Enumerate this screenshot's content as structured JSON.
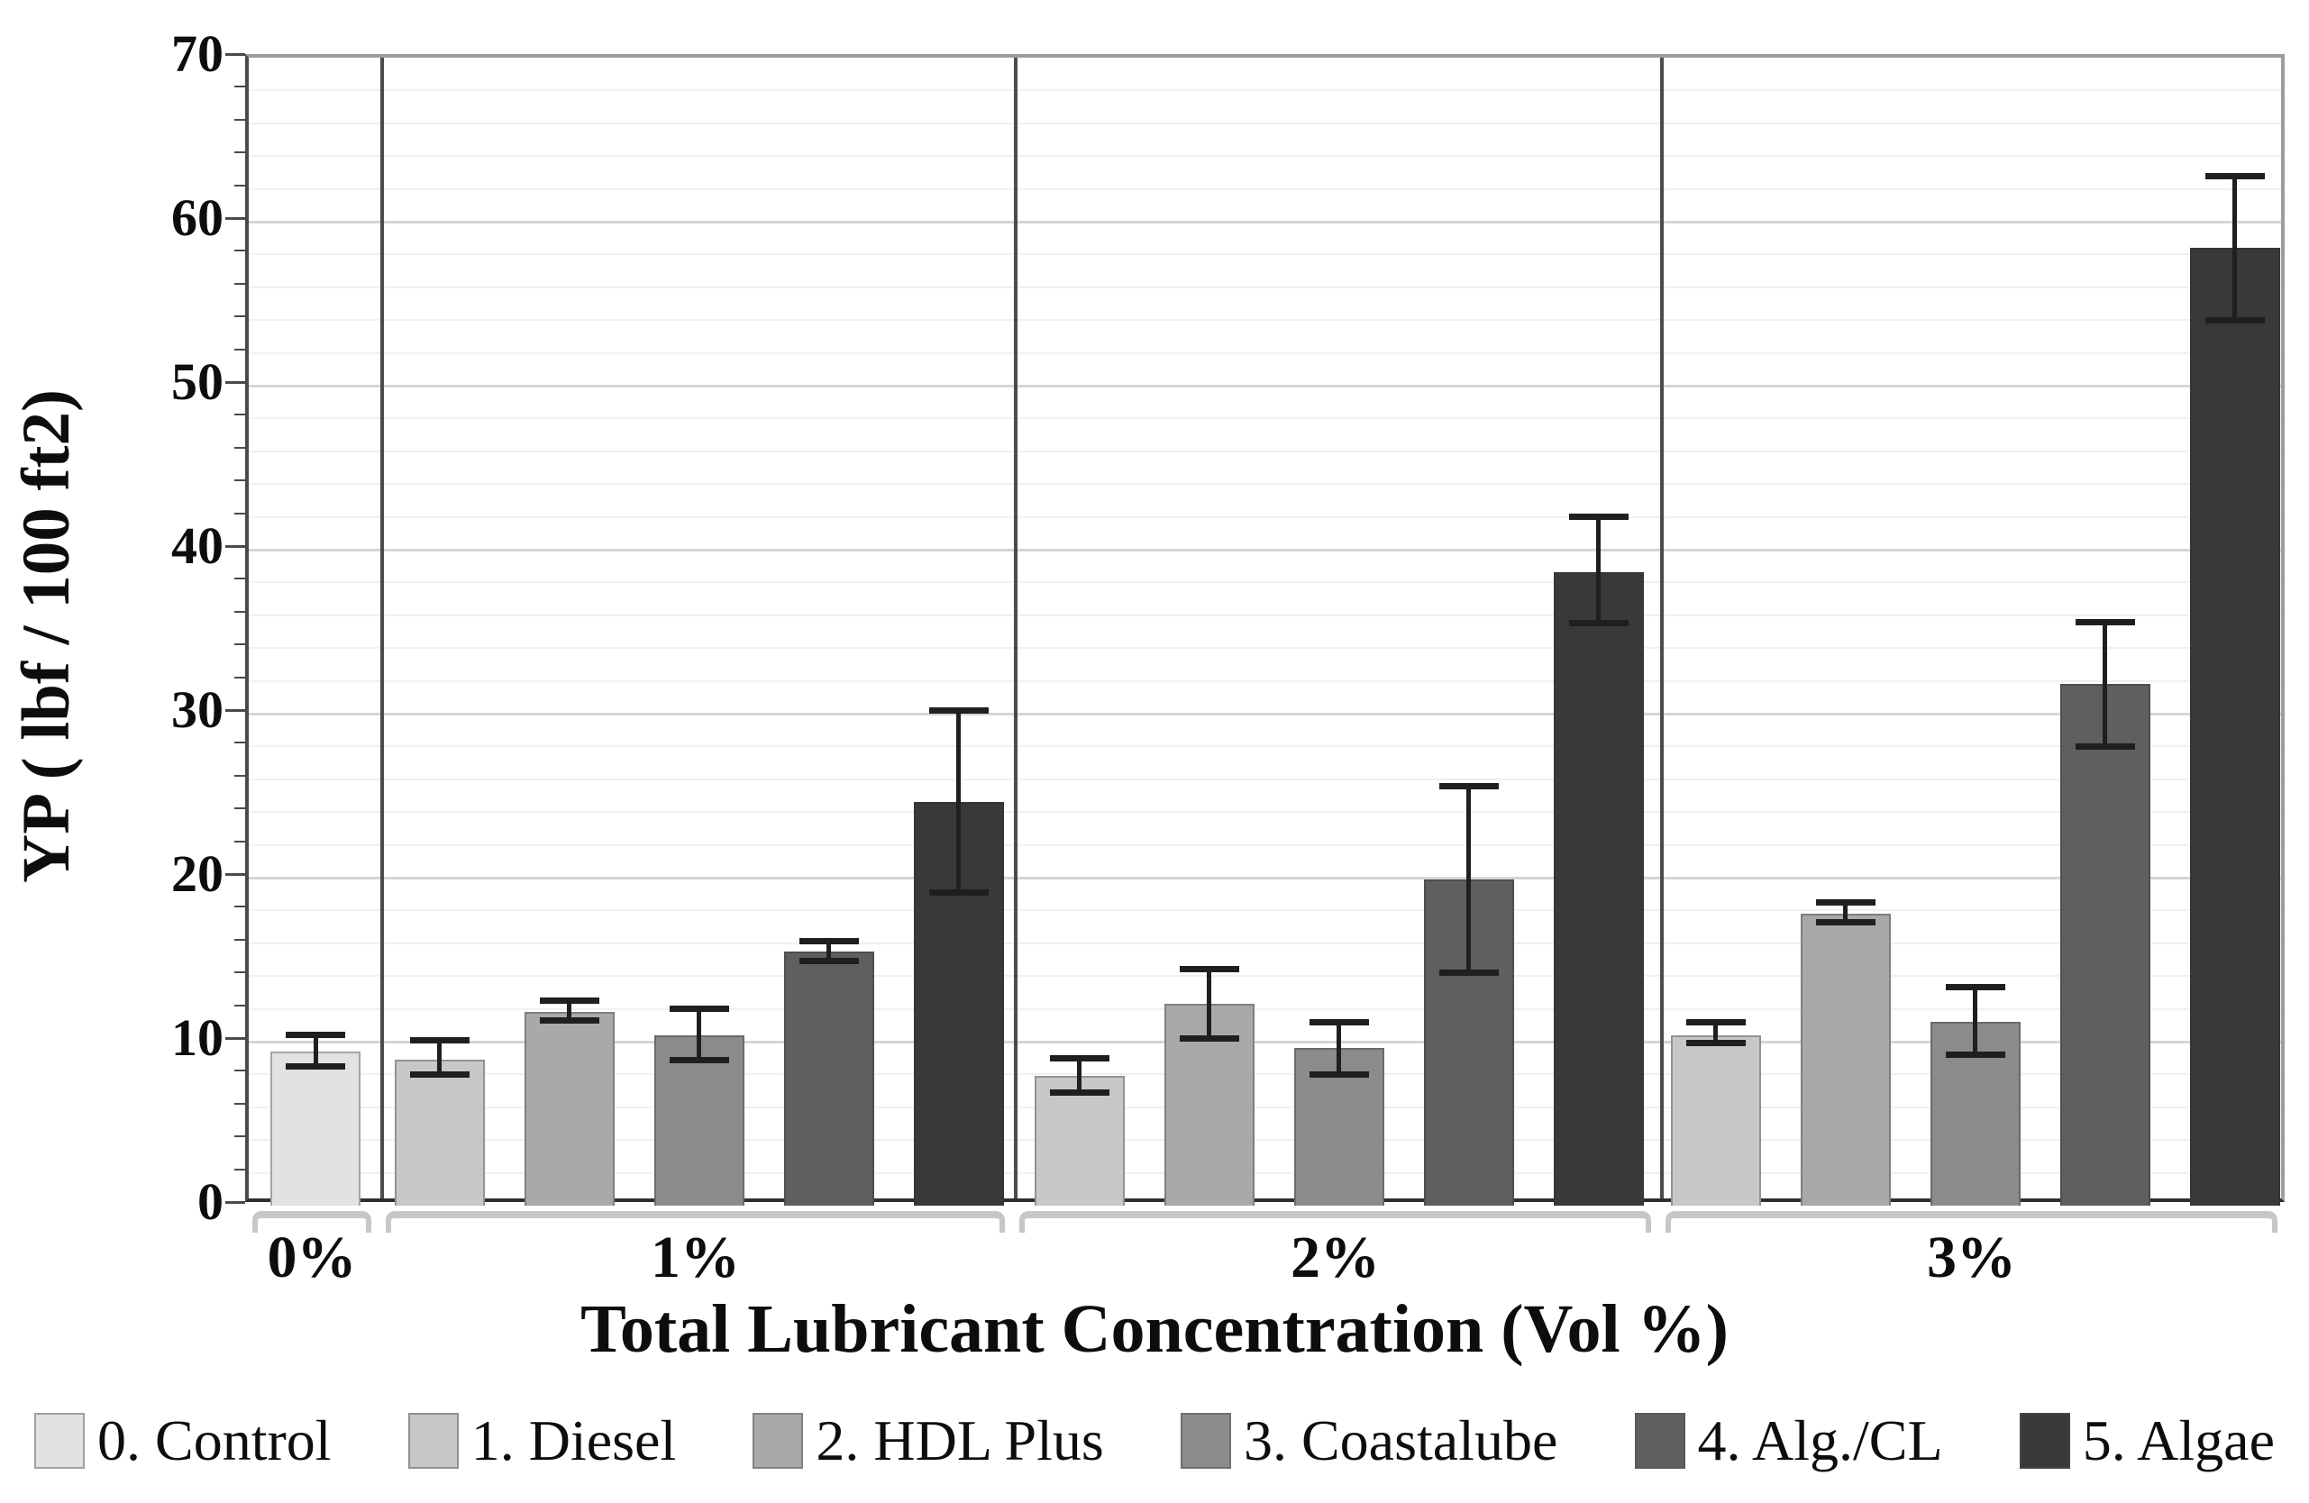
{
  "chart_data": {
    "type": "bar",
    "title": "",
    "xlabel": "Total Lubricant Concentration (Vol %)",
    "ylabel": "YP ( lbf / 100 ft2)",
    "ylim": [
      0,
      70
    ],
    "yticks": [
      0,
      10,
      20,
      30,
      40,
      50,
      60,
      70
    ],
    "ytick_step": 10,
    "yminor_step": 2,
    "grid": "horizontal",
    "legend_position": "bottom",
    "error_bars": true,
    "categories": [
      "0%",
      "1%",
      "2%",
      "3%"
    ],
    "series": [
      {
        "name": "0. Control",
        "color": "#e2e2e2",
        "values": [
          9.4,
          null,
          null,
          null
        ],
        "err_low": [
          8.5,
          null,
          null,
          null
        ],
        "err_high": [
          10.4,
          null,
          null,
          null
        ]
      },
      {
        "name": "1. Diesel",
        "color": "#c7c7c7",
        "values": [
          null,
          8.9,
          7.9,
          10.4
        ],
        "err_low": [
          null,
          8.0,
          6.9,
          9.9
        ],
        "err_high": [
          null,
          10.1,
          9.0,
          11.2
        ]
      },
      {
        "name": "2. HDL Plus",
        "color": "#a9a9a9",
        "values": [
          null,
          11.8,
          12.3,
          17.8
        ],
        "err_low": [
          null,
          11.3,
          10.2,
          17.3
        ],
        "err_high": [
          null,
          12.5,
          14.4,
          18.5
        ]
      },
      {
        "name": "3. Coastalube",
        "color": "#8b8b8b",
        "values": [
          null,
          10.4,
          9.6,
          11.2
        ],
        "err_low": [
          null,
          8.9,
          8.0,
          9.2
        ],
        "err_high": [
          null,
          12.0,
          11.2,
          13.3
        ]
      },
      {
        "name": "4. Alg./CL",
        "color": "#5f5f5f",
        "values": [
          null,
          15.5,
          19.9,
          31.8
        ],
        "err_low": [
          null,
          14.9,
          14.2,
          28.0
        ],
        "err_high": [
          null,
          16.1,
          25.6,
          35.6
        ]
      },
      {
        "name": "5. Algae",
        "color": "#393939",
        "values": [
          null,
          24.6,
          38.6,
          58.4
        ],
        "err_low": [
          null,
          19.1,
          35.5,
          54.0
        ],
        "err_high": [
          null,
          30.2,
          42.0,
          62.8
        ]
      }
    ]
  }
}
